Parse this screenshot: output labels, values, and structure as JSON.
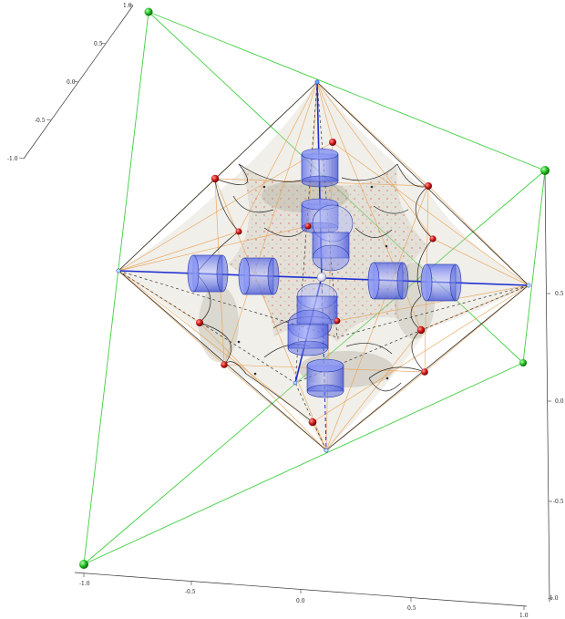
{
  "figure": {
    "axes": {
      "top_left_axis": {
        "tick_labels": [
          "1.0",
          "0.5",
          "0.0",
          "-0.5",
          "-1.0"
        ]
      },
      "bottom_axis": {
        "tick_labels": [
          "-1.0",
          "-0.5",
          "0.0",
          "0.5",
          "1.0"
        ]
      },
      "right_axis": {
        "tick_labels": [
          "0.5",
          "0.0",
          "-0.5",
          "-1.0"
        ]
      }
    },
    "colors": {
      "bounding_box": "#3fcf3f",
      "octahedron_edges": "#2a2a2a",
      "axis_lines": "#1f2fd0",
      "connector_lines": "#e8a050",
      "cylinders": "#6d7cf0",
      "sphere_red": "#d01515",
      "sphere_green": "#19b619",
      "surface": "#c8c4b6"
    }
  }
}
